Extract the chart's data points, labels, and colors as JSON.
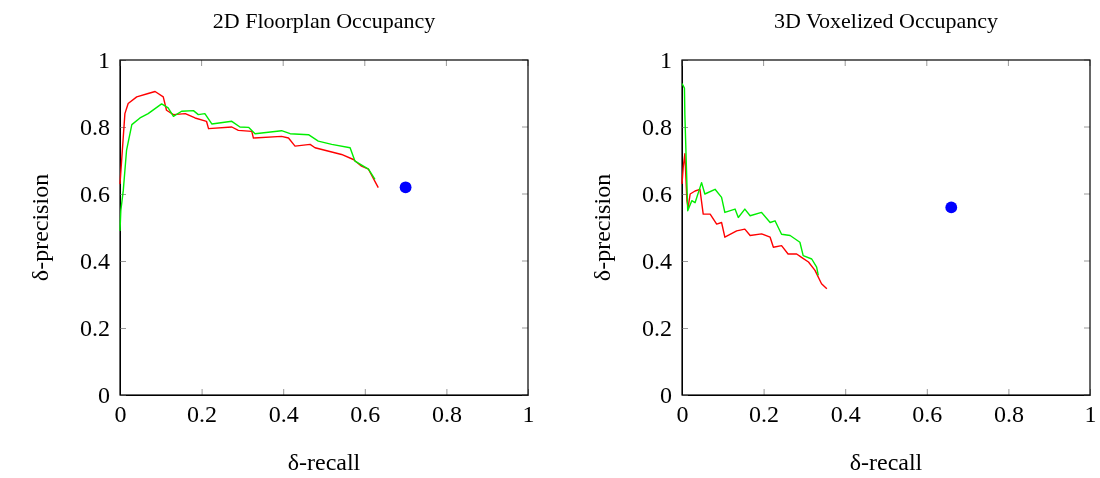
{
  "chart_data": [
    {
      "type": "line",
      "title": "2D Floorplan Occupancy",
      "xlabel": "δ-recall",
      "ylabel": "δ-precision",
      "xlim": [
        0,
        1
      ],
      "ylim": [
        0,
        1
      ],
      "xticks": [
        0,
        0.2,
        0.4,
        0.6,
        0.8,
        1
      ],
      "yticks": [
        0,
        0.2,
        0.4,
        0.6,
        0.8,
        1
      ],
      "grid": false,
      "line_style": "solid",
      "series": [
        {
          "color": "#ff0000",
          "x": [
            0.0,
            0.004,
            0.012,
            0.02,
            0.041,
            0.069,
            0.086,
            0.106,
            0.114,
            0.131,
            0.16,
            0.184,
            0.212,
            0.217,
            0.274,
            0.29,
            0.323,
            0.327,
            0.396,
            0.413,
            0.429,
            0.466,
            0.478,
            0.543,
            0.572,
            0.592,
            0.609,
            0.633
          ],
          "values": [
            0.63,
            0.7,
            0.84,
            0.87,
            0.89,
            0.9,
            0.906,
            0.89,
            0.85,
            0.837,
            0.84,
            0.827,
            0.817,
            0.795,
            0.8,
            0.79,
            0.787,
            0.767,
            0.772,
            0.767,
            0.743,
            0.748,
            0.738,
            0.718,
            0.703,
            0.683,
            0.674,
            0.619
          ]
        },
        {
          "color": "#00ee00",
          "x": [
            0.0,
            0.002,
            0.008,
            0.016,
            0.029,
            0.049,
            0.069,
            0.102,
            0.118,
            0.131,
            0.151,
            0.18,
            0.192,
            0.208,
            0.225,
            0.274,
            0.294,
            0.315,
            0.331,
            0.396,
            0.417,
            0.462,
            0.486,
            0.519,
            0.564,
            0.576,
            0.609,
            0.625
          ],
          "values": [
            0.49,
            0.55,
            0.61,
            0.73,
            0.807,
            0.827,
            0.84,
            0.869,
            0.857,
            0.832,
            0.847,
            0.849,
            0.837,
            0.84,
            0.809,
            0.817,
            0.8,
            0.799,
            0.78,
            0.789,
            0.78,
            0.777,
            0.758,
            0.748,
            0.738,
            0.698,
            0.674,
            0.644
          ]
        },
        {
          "type": "scatter",
          "marker": "circle",
          "color": "#0000ff",
          "x": [
            0.7
          ],
          "values": [
            0.62
          ]
        }
      ]
    },
    {
      "type": "line",
      "title": "3D Voxelized Occupancy",
      "xlabel": "δ-recall",
      "ylabel": "δ-precision",
      "xlim": [
        0,
        1
      ],
      "ylim": [
        0,
        1
      ],
      "xticks": [
        0,
        0.2,
        0.4,
        0.6,
        0.8,
        1
      ],
      "yticks": [
        0,
        0.2,
        0.4,
        0.6,
        0.8,
        1
      ],
      "grid": false,
      "line_style": "solid",
      "series": [
        {
          "color": "#ff0000",
          "x": [
            0.0,
            0.003,
            0.007,
            0.012,
            0.015,
            0.02,
            0.032,
            0.044,
            0.052,
            0.069,
            0.085,
            0.097,
            0.105,
            0.134,
            0.154,
            0.167,
            0.195,
            0.216,
            0.224,
            0.244,
            0.26,
            0.281,
            0.293,
            0.31,
            0.326,
            0.342,
            0.355
          ],
          "values": [
            0.63,
            0.68,
            0.72,
            0.58,
            0.56,
            0.6,
            0.609,
            0.614,
            0.54,
            0.54,
            0.51,
            0.515,
            0.471,
            0.49,
            0.495,
            0.476,
            0.481,
            0.471,
            0.441,
            0.446,
            0.421,
            0.421,
            0.411,
            0.397,
            0.372,
            0.332,
            0.317
          ]
        },
        {
          "color": "#00ee00",
          "x": [
            0.0,
            0.006,
            0.007,
            0.014,
            0.024,
            0.032,
            0.048,
            0.056,
            0.081,
            0.097,
            0.105,
            0.13,
            0.138,
            0.154,
            0.167,
            0.195,
            0.216,
            0.228,
            0.244,
            0.265,
            0.289,
            0.297,
            0.318,
            0.33,
            0.334
          ],
          "values": [
            0.93,
            0.916,
            0.837,
            0.55,
            0.58,
            0.574,
            0.634,
            0.6,
            0.614,
            0.59,
            0.545,
            0.555,
            0.53,
            0.555,
            0.535,
            0.545,
            0.515,
            0.52,
            0.48,
            0.476,
            0.456,
            0.416,
            0.406,
            0.382,
            0.357
          ]
        },
        {
          "type": "scatter",
          "marker": "circle",
          "color": "#0000ff",
          "x": [
            0.66
          ],
          "values": [
            0.56
          ]
        }
      ]
    }
  ]
}
